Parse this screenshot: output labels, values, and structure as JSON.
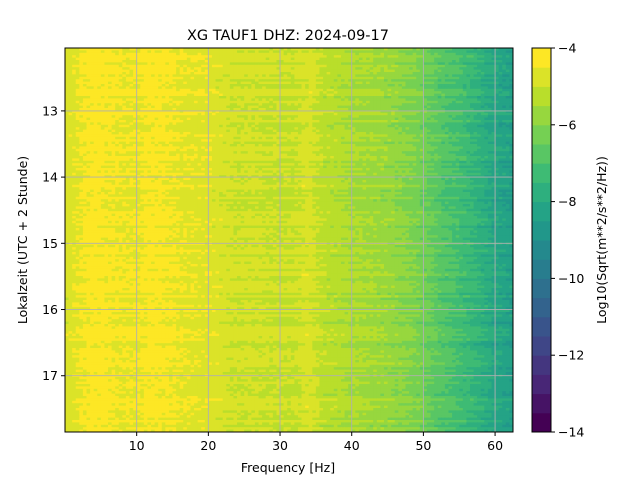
{
  "chart_data": {
    "type": "heatmap",
    "title": "XG TAUF1  DHZ: 2024-09-17",
    "xlabel": "Frequency [Hz]",
    "ylabel": "Lokalzeit (UTC + 2 Stunde)",
    "xlim": [
      0,
      62.5
    ],
    "ylim": [
      17.85,
      12.05
    ],
    "x_ticks": [
      10,
      20,
      30,
      40,
      50,
      60
    ],
    "y_ticks": [
      13,
      14,
      15,
      16,
      17
    ],
    "grid": true,
    "colormap": "viridis",
    "colorbar": {
      "label": "Log10(Sqrt(m**2/s**2/Hz))",
      "range": [
        -14,
        -4
      ],
      "ticks": [
        -4,
        -6,
        -8,
        -10,
        -12,
        -14
      ],
      "levels": 20
    },
    "spectrum_profile": {
      "frequency_hz": [
        0,
        2,
        4,
        6,
        8,
        10,
        12,
        14,
        16,
        18,
        20,
        22,
        24,
        26,
        28,
        30,
        32,
        34,
        36,
        38,
        40,
        42,
        44,
        46,
        48,
        50,
        52,
        54,
        56,
        58,
        60,
        62.5
      ],
      "log10_amplitude": [
        -4.8,
        -4.5,
        -4.3,
        -4.4,
        -4.5,
        -4.5,
        -4.35,
        -4.4,
        -4.55,
        -4.6,
        -4.65,
        -4.8,
        -4.95,
        -4.9,
        -5.0,
        -5.0,
        -5.05,
        -4.75,
        -5.2,
        -5.3,
        -5.45,
        -5.55,
        -5.65,
        -5.8,
        -6.0,
        -6.3,
        -6.7,
        -7.0,
        -7.3,
        -7.7,
        -8.1,
        -8.4
      ]
    },
    "colors": {
      "grid": "#b0b0b0"
    }
  }
}
